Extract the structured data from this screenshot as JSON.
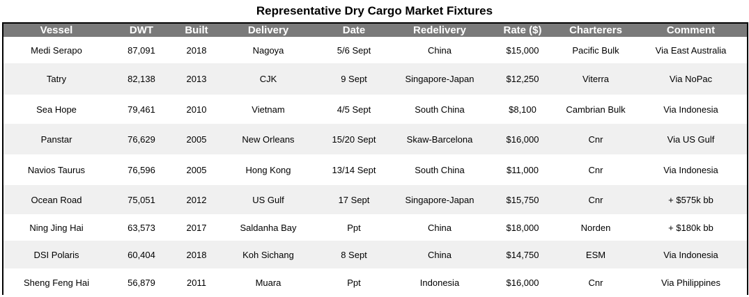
{
  "title": "Representative Dry Cargo Market Fixtures",
  "headers": [
    "Vessel",
    "DWT",
    "Built",
    "Delivery",
    "Date",
    "Redelivery",
    "Rate ($)",
    "Charterers",
    "Comment"
  ],
  "rows": [
    [
      "Medi Serapo",
      "87,091",
      "2018",
      "Nagoya",
      "5/6 Sept",
      "China",
      "$15,000",
      "Pacific Bulk",
      "Via East Australia"
    ],
    [
      "Tatry",
      "82,138",
      "2013",
      "CJK",
      "9 Sept",
      "Singapore-Japan",
      "$12,250",
      "Viterra",
      "Via NoPac"
    ],
    [
      "Sea Hope",
      "79,461",
      "2010",
      "Vietnam",
      "4/5 Sept",
      "South China",
      "$8,100",
      "Cambrian Bulk",
      "Via Indonesia"
    ],
    [
      "Panstar",
      "76,629",
      "2005",
      "New Orleans",
      "15/20 Sept",
      "Skaw-Barcelona",
      "$16,000",
      "Cnr",
      "Via US Gulf"
    ],
    [
      "Navios Taurus",
      "76,596",
      "2005",
      "Hong Kong",
      "13/14 Sept",
      "South China",
      "$11,000",
      "Cnr",
      "Via Indonesia"
    ],
    [
      "Ocean Road",
      "75,051",
      "2012",
      "US Gulf",
      "17 Sept",
      "Singapore-Japan",
      "$15,750",
      "Cnr",
      "+ $575k bb"
    ],
    [
      "Ning Jing Hai",
      "63,573",
      "2017",
      "Saldanha Bay",
      "Ppt",
      "China",
      "$18,000",
      "Norden",
      "+ $180k bb"
    ],
    [
      "DSI Polaris",
      "60,404",
      "2018",
      "Koh Sichang",
      "8 Sept",
      "China",
      "$14,750",
      "ESM",
      "Via Indonesia"
    ],
    [
      "Sheng Feng Hai",
      "56,879",
      "2011",
      "Muara",
      "Ppt",
      "Indonesia",
      "$16,000",
      "Cnr",
      "Via Philippines"
    ]
  ],
  "colors": {
    "header_bg": "#7a7a7a",
    "header_text": "#ffffff",
    "row_alt": "#f0f0f0",
    "border": "#000000"
  }
}
